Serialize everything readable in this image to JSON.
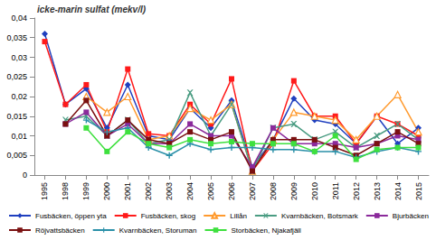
{
  "chart_data": {
    "type": "line",
    "title": "icke-marin sulfat (mekv/l)",
    "categories": [
      "1995",
      "1998",
      "1999",
      "2000",
      "2001",
      "2002",
      "2003",
      "2004",
      "2005",
      "2006",
      "2007",
      "2008",
      "2009",
      "2010",
      "2011",
      "2012",
      "2013",
      "2014",
      "2015"
    ],
    "ylim": [
      0,
      0.04
    ],
    "yticks": [
      0,
      {
        "value": 0.005,
        "label": "0,005"
      },
      {
        "value": 0.01,
        "label": "0,01"
      },
      {
        "value": 0.015,
        "label": "0,015"
      },
      {
        "value": 0.02,
        "label": "0,02"
      },
      {
        "value": 0.025,
        "label": "0,025"
      },
      {
        "value": 0.03,
        "label": "0,03"
      },
      {
        "value": 0.035,
        "label": "0,035"
      },
      {
        "value": 0.04,
        "label": "0,04"
      }
    ],
    "grid": false,
    "legend": "bottom",
    "series": [
      {
        "name": "Fusbäcken, öppen yta",
        "color": "#1f3fbf",
        "marker": "diamond",
        "values": [
          0.036,
          0.018,
          0.022,
          0.012,
          0.023,
          0.01,
          0.009,
          0.017,
          0.012,
          0.019,
          0.002,
          0.009,
          0.0195,
          0.014,
          0.013,
          0.008,
          0.015,
          0.008,
          0.012
        ]
      },
      {
        "name": "Fusbäcken, skog",
        "color": "#ff1a1a",
        "marker": "square",
        "values": [
          0.034,
          0.018,
          0.023,
          0.011,
          0.027,
          0.0105,
          0.01,
          0.018,
          0.013,
          0.0245,
          0.001,
          0.008,
          0.024,
          0.015,
          0.015,
          0.008,
          0.015,
          0.013,
          0.01
        ]
      },
      {
        "name": "Lillån",
        "color": "#ff9a2e",
        "marker": "triangle",
        "values": [
          null,
          null,
          0.02,
          0.016,
          0.02,
          0.009,
          0.01,
          0.017,
          0.014,
          0.018,
          0.001,
          0.009,
          0.016,
          0.015,
          0.014,
          0.009,
          0.015,
          0.0205,
          0.011
        ]
      },
      {
        "name": "Kvarnbäcken, Botsmark",
        "color": "#4a9c82",
        "marker": "x",
        "values": [
          null,
          0.014,
          0.015,
          0.01,
          0.014,
          0.008,
          0.009,
          0.021,
          0.01,
          0.018,
          0.001,
          0.012,
          0.013,
          0.009,
          0.011,
          0.007,
          0.01,
          0.013,
          0.009
        ]
      },
      {
        "name": "Bjurbäcken",
        "color": "#8b2a9b",
        "marker": "square",
        "values": [
          null,
          0.013,
          0.016,
          0.01,
          0.013,
          0.008,
          0.008,
          0.013,
          0.01,
          0.01,
          0.002,
          0.012,
          0.008,
          0.008,
          0.008,
          0.007,
          0.008,
          0.01,
          0.009
        ]
      },
      {
        "name": "Röjvattsbäcken",
        "color": "#7a1010",
        "marker": "square",
        "values": [
          null,
          0.013,
          0.019,
          0.01,
          0.014,
          0.009,
          0.008,
          0.011,
          0.009,
          0.011,
          0.001,
          0.009,
          0.009,
          0.009,
          0.007,
          0.005,
          0.008,
          0.011,
          0.008
        ]
      },
      {
        "name": "Kvarnbäcken, Storuman",
        "color": "#2a90a8",
        "marker": "plus",
        "values": [
          null,
          null,
          0.014,
          0.011,
          0.012,
          0.007,
          0.005,
          0.008,
          0.0065,
          0.007,
          0.007,
          0.0065,
          0.0065,
          0.006,
          0.006,
          0.0045,
          0.006,
          0.007,
          0.006
        ]
      },
      {
        "name": "Storbäcken, Njakafjäll",
        "color": "#3ee03e",
        "marker": "square",
        "values": [
          null,
          null,
          0.012,
          0.006,
          0.011,
          0.008,
          0.007,
          0.009,
          0.008,
          0.0085,
          0.008,
          0.008,
          0.008,
          0.006,
          0.01,
          0.004,
          0.0065,
          0.007,
          0.007
        ]
      }
    ]
  }
}
